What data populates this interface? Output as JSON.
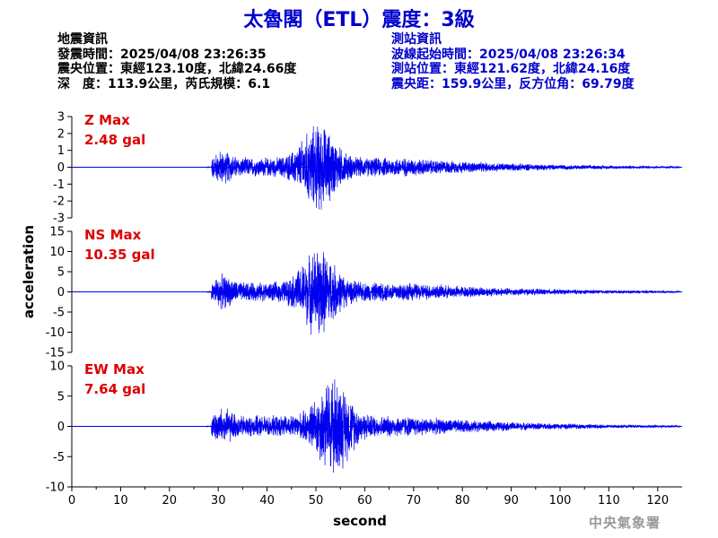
{
  "title": "太魯閣（ETL）震度：3級",
  "quake_info": {
    "heading": "地震資訊",
    "origin_time": "發震時間：2025/04/08 23:26:35",
    "epicenter": "震央位置：東經123.10度，北緯24.66度",
    "depth_magnitude": "深　度：113.9公里，芮氏規模：6.1"
  },
  "station_info": {
    "heading": "測站資訊",
    "wave_start": "波線起始時間：2025/04/08 23:26:34",
    "location": "測站位置：東經121.62度，北緯24.16度",
    "distance_azimuth": "震央距：159.9公里，反方位角：69.79度"
  },
  "watermark": "中央氣象署",
  "colors": {
    "title": "#0000cc",
    "trace": "#0000ee",
    "max_label": "#dd0000",
    "info_left": "#000000",
    "info_right": "#0000cc"
  },
  "chart_data": {
    "type": "line",
    "xlabel": "second",
    "ylabel": "acceleration",
    "xlim": [
      0,
      125
    ],
    "x_ticks": [
      0,
      10,
      20,
      30,
      40,
      50,
      60,
      70,
      80,
      90,
      100,
      110,
      120
    ],
    "grid": false,
    "signal_onset": 28.6,
    "panels": [
      {
        "name": "Z",
        "max_label": "Z Max",
        "max_value": "2.48 gal",
        "max_abs": 2.48,
        "ylim": [
          -3,
          3
        ],
        "y_ticks": [
          3,
          2,
          1,
          0,
          -1,
          -2,
          -3
        ],
        "peak_pos": 2.1,
        "peak_neg": -2.5,
        "peak_time": 50.5
      },
      {
        "name": "NS",
        "max_label": "NS Max",
        "max_value": "10.35 gal",
        "max_abs": 10.35,
        "ylim": [
          -15,
          15
        ],
        "y_ticks": [
          15,
          10,
          5,
          0,
          -5,
          -10,
          -15
        ],
        "peak_pos": 7.5,
        "peak_neg": -10.2,
        "peak_time": 50.5
      },
      {
        "name": "EW",
        "max_label": "EW Max",
        "max_value": "7.64 gal",
        "max_abs": 7.64,
        "ylim": [
          -10,
          10
        ],
        "y_ticks": [
          10,
          5,
          0,
          -5,
          -10
        ],
        "peak_pos": 7.1,
        "peak_neg": -7.64,
        "peak_time": 53.5
      }
    ]
  }
}
